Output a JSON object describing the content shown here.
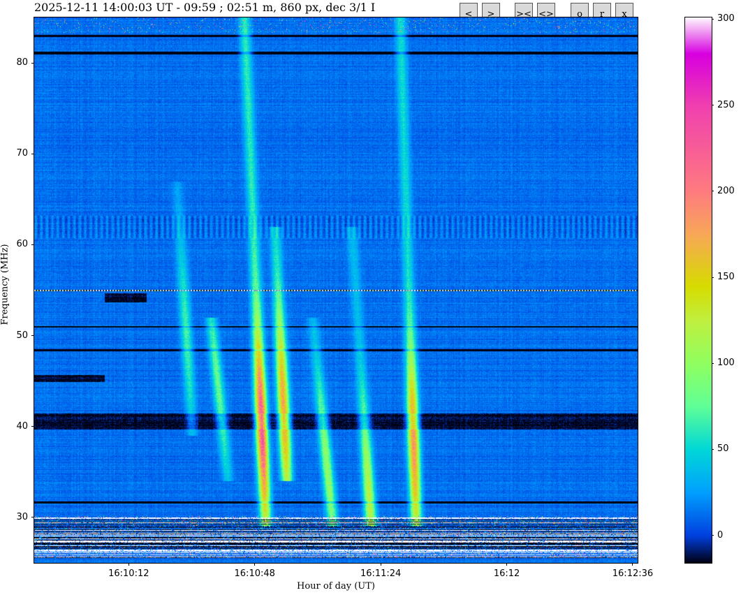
{
  "title": "2025-12-11 14:00:03 UT - 09:59 ; 02:51 m, 860 px, dec 3/1 I",
  "toolbar": {
    "buttons": [
      {
        "label": "<",
        "name": "previous-button"
      },
      {
        "label": ">",
        "name": "next-button"
      },
      {
        "label": "><",
        "name": "zoom-in-button"
      },
      {
        "label": "<>",
        "name": "zoom-out-button"
      },
      {
        "label": "o",
        "name": "original-button"
      },
      {
        "label": "r",
        "name": "reset-button"
      },
      {
        "label": "x",
        "name": "close-button"
      }
    ]
  },
  "chart_data": {
    "type": "heatmap",
    "title": "",
    "xlabel": "Hour of day (UT)",
    "ylabel": "Frequency (MHz)",
    "xlim": [
      "16:09:45",
      "16:12:37"
    ],
    "ylim": [
      25,
      85
    ],
    "xticks": [
      "16:10:12",
      "16:10:48",
      "16:11:24",
      "16:12",
      "16:12:36"
    ],
    "xtick_seconds": [
      27,
      63,
      99,
      135,
      171
    ],
    "yticks": [
      30,
      40,
      50,
      60,
      70,
      80
    ],
    "colorbar": {
      "clim": [
        -16,
        301
      ],
      "ticks": [
        0,
        50,
        100,
        150,
        200,
        250,
        300
      ]
    },
    "colormap_stops": [
      [
        -16,
        "#000010"
      ],
      [
        0,
        "#0040e0"
      ],
      [
        25,
        "#00a0ff"
      ],
      [
        50,
        "#00d8d8"
      ],
      [
        75,
        "#60ff98"
      ],
      [
        100,
        "#90ff60"
      ],
      [
        125,
        "#c0f040"
      ],
      [
        145,
        "#d8dc00"
      ],
      [
        175,
        "#f8a858"
      ],
      [
        200,
        "#ff7c80"
      ],
      [
        250,
        "#f040b0"
      ],
      [
        280,
        "#d800e0"
      ],
      [
        301,
        "#fff8ff"
      ]
    ],
    "background_level": 12,
    "bursts": [
      {
        "t_high": 60,
        "t_low": 66,
        "f_high": 85,
        "f_low": 30,
        "peak": 200,
        "peak_freq": 40
      },
      {
        "t_high": 104.5,
        "t_low": 109,
        "f_high": 85,
        "f_low": 30,
        "peak": 160,
        "peak_freq": 38
      },
      {
        "t_high": 69,
        "t_low": 72,
        "f_high": 60,
        "f_low": 35,
        "peak": 150,
        "peak_freq": 42
      },
      {
        "t_high": 80,
        "t_low": 85,
        "f_high": 50,
        "f_low": 30,
        "peak": 80,
        "peak_freq": 35
      },
      {
        "t_high": 91,
        "t_low": 96,
        "f_high": 60,
        "f_low": 30,
        "peak": 100,
        "peak_freq": 32
      },
      {
        "t_high": 51,
        "t_low": 55,
        "f_high": 50,
        "f_low": 35,
        "peak": 60,
        "peak_freq": 45
      },
      {
        "t_high": 41,
        "t_low": 45,
        "f_high": 65,
        "f_low": 40,
        "peak": 50,
        "peak_freq": 50
      }
    ],
    "rfi_band_mhz": [
      25,
      30
    ]
  }
}
